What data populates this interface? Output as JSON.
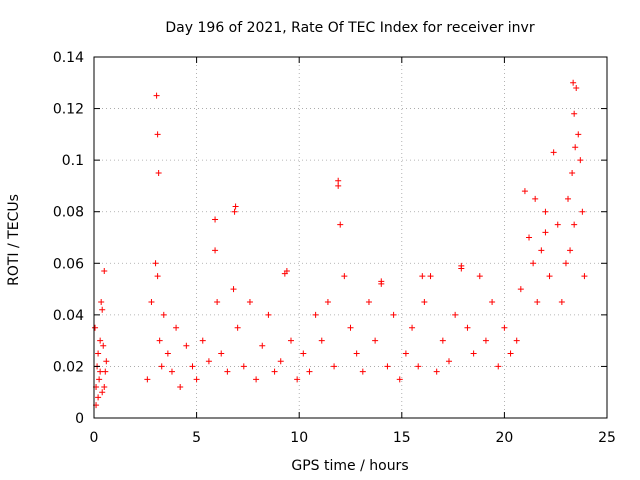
{
  "chart_data": {
    "type": "scatter",
    "title": "Day 196 of 2021, Rate Of TEC Index for receiver invr",
    "xlabel": "GPS time / hours",
    "ylabel": "ROTI / TECUs",
    "xlim": [
      0,
      25
    ],
    "ylim": [
      0,
      0.14
    ],
    "xticks": [
      0,
      5,
      10,
      15,
      20,
      25
    ],
    "yticks": [
      0,
      0.02,
      0.04,
      0.06,
      0.08,
      0.1,
      0.12,
      0.14
    ],
    "xtick_labels": [
      "0",
      "5",
      "10",
      "15",
      "20",
      "25"
    ],
    "ytick_labels": [
      "0",
      "0.02",
      "0.04",
      "0.06",
      "0.08",
      "0.1",
      "0.12",
      "0.14"
    ],
    "grid": true,
    "marker": "+",
    "color": "#ff0000",
    "series": [
      {
        "name": "ROTI",
        "x": [
          0.05,
          0.1,
          0.15,
          0.2,
          0.25,
          0.3,
          0.35,
          0.4,
          0.45,
          0.5,
          0.55,
          0.6,
          0.1,
          0.2,
          0.3,
          0.4,
          0.5,
          2.6,
          2.8,
          3.0,
          3.1,
          3.2,
          3.3,
          3.4,
          3.6,
          3.8,
          4.0,
          4.2,
          4.5,
          4.8,
          5.0,
          5.3,
          5.6,
          5.9,
          6.0,
          6.2,
          6.5,
          6.8,
          6.9,
          7.0,
          7.3,
          7.6,
          7.9,
          8.2,
          8.5,
          8.8,
          9.1,
          9.3,
          9.6,
          9.9,
          10.2,
          10.5,
          10.8,
          11.1,
          11.4,
          11.7,
          11.9,
          12.0,
          12.2,
          12.5,
          12.8,
          13.1,
          13.4,
          13.7,
          14.0,
          14.3,
          14.6,
          14.9,
          15.2,
          15.5,
          15.8,
          16.1,
          16.4,
          16.7,
          17.0,
          17.3,
          17.6,
          17.9,
          18.2,
          18.5,
          18.8,
          19.1,
          19.4,
          19.7,
          20.0,
          20.3,
          20.6,
          20.8,
          21.0,
          21.2,
          21.4,
          21.6,
          21.8,
          22.0,
          22.2,
          22.4,
          22.6,
          22.8,
          23.0,
          23.1,
          23.2,
          23.3,
          23.4,
          23.5,
          23.6,
          23.7,
          23.8,
          23.9,
          3.05,
          3.1,
          3.15,
          6.85,
          11.9,
          21.5,
          22.0,
          23.35,
          23.4,
          23.45,
          5.9,
          9.4,
          17.9,
          16.0,
          14.0
        ],
        "y": [
          0.035,
          0.012,
          0.02,
          0.008,
          0.015,
          0.03,
          0.045,
          0.01,
          0.028,
          0.057,
          0.018,
          0.022,
          0.005,
          0.025,
          0.018,
          0.042,
          0.012,
          0.015,
          0.045,
          0.06,
          0.055,
          0.03,
          0.02,
          0.04,
          0.025,
          0.018,
          0.035,
          0.012,
          0.028,
          0.02,
          0.015,
          0.03,
          0.022,
          0.065,
          0.045,
          0.025,
          0.018,
          0.05,
          0.082,
          0.035,
          0.02,
          0.045,
          0.015,
          0.028,
          0.04,
          0.018,
          0.022,
          0.056,
          0.03,
          0.015,
          0.025,
          0.018,
          0.04,
          0.03,
          0.045,
          0.02,
          0.09,
          0.075,
          0.055,
          0.035,
          0.025,
          0.018,
          0.045,
          0.03,
          0.052,
          0.02,
          0.04,
          0.015,
          0.025,
          0.035,
          0.02,
          0.045,
          0.055,
          0.018,
          0.03,
          0.022,
          0.04,
          0.058,
          0.035,
          0.025,
          0.055,
          0.03,
          0.045,
          0.02,
          0.035,
          0.025,
          0.03,
          0.05,
          0.088,
          0.07,
          0.06,
          0.045,
          0.065,
          0.08,
          0.055,
          0.103,
          0.075,
          0.045,
          0.06,
          0.085,
          0.065,
          0.095,
          0.075,
          0.128,
          0.11,
          0.1,
          0.08,
          0.055,
          0.125,
          0.11,
          0.095,
          0.08,
          0.092,
          0.085,
          0.072,
          0.13,
          0.118,
          0.105,
          0.077,
          0.057,
          0.059,
          0.055,
          0.053
        ]
      }
    ]
  }
}
